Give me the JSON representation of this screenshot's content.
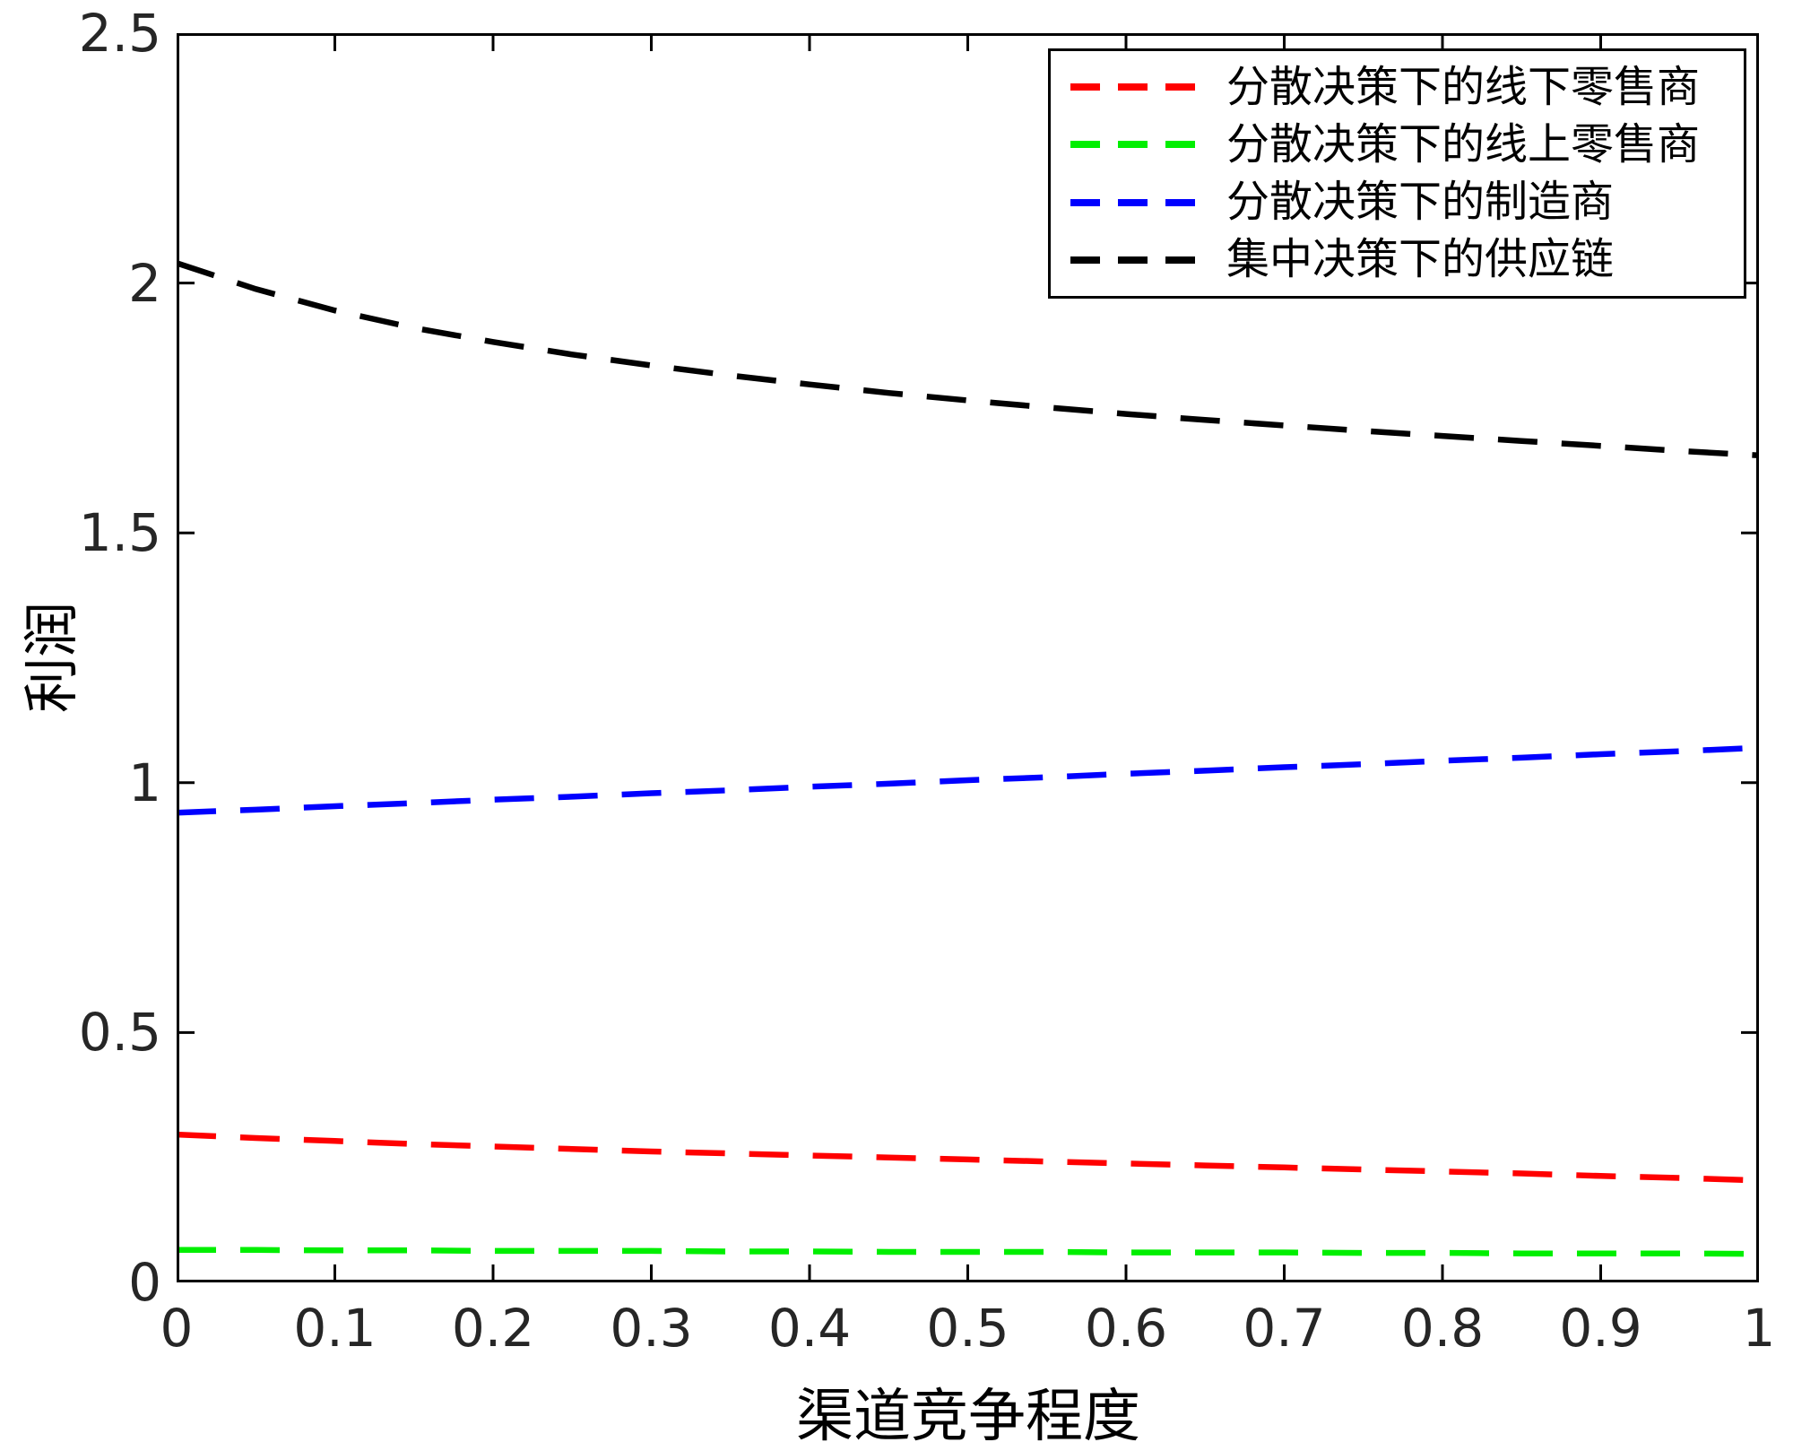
{
  "chart_data": {
    "type": "line",
    "title": "",
    "xlabel": "渠道竞争程度",
    "ylabel": "利润",
    "xlim": [
      0,
      1
    ],
    "ylim": [
      0,
      2.5
    ],
    "xticks": [
      0,
      0.1,
      0.2,
      0.3,
      0.4,
      0.5,
      0.6,
      0.7,
      0.8,
      0.9,
      1
    ],
    "xtick_labels": [
      "0",
      "0.1",
      "0.2",
      "0.3",
      "0.4",
      "0.5",
      "0.6",
      "0.7",
      "0.8",
      "0.9",
      "1"
    ],
    "yticks": [
      0,
      0.5,
      1,
      1.5,
      2,
      2.5
    ],
    "ytick_labels": [
      "0",
      "0.5",
      "1",
      "1.5",
      "2",
      "2.5"
    ],
    "grid": false,
    "legend_position": "top-right",
    "line_style": "dashed",
    "x": [
      0,
      0.05,
      0.1,
      0.15,
      0.2,
      0.25,
      0.3,
      0.35,
      0.4,
      0.45,
      0.5,
      0.55,
      0.6,
      0.65,
      0.7,
      0.75,
      0.8,
      0.85,
      0.9,
      0.95,
      1
    ],
    "series": [
      {
        "name": "分散决策下的线下零售商",
        "color": "#ff0000",
        "values": [
          0.296,
          0.289,
          0.283,
          0.277,
          0.272,
          0.267,
          0.262,
          0.258,
          0.254,
          0.25,
          0.246,
          0.242,
          0.238,
          0.234,
          0.23,
          0.226,
          0.222,
          0.218,
          0.213,
          0.209,
          0.204
        ]
      },
      {
        "name": "分散决策下的线上零售商",
        "color": "#00ef00",
        "values": [
          0.065,
          0.065,
          0.064,
          0.064,
          0.063,
          0.063,
          0.063,
          0.062,
          0.062,
          0.061,
          0.061,
          0.061,
          0.06,
          0.06,
          0.06,
          0.059,
          0.059,
          0.058,
          0.058,
          0.058,
          0.057
        ]
      },
      {
        "name": "分散决策下的制造商",
        "color": "#0000ff",
        "values": [
          0.94,
          0.946,
          0.953,
          0.959,
          0.966,
          0.972,
          0.979,
          0.985,
          0.992,
          0.998,
          1.005,
          1.011,
          1.018,
          1.024,
          1.031,
          1.037,
          1.044,
          1.05,
          1.057,
          1.063,
          1.07
        ]
      },
      {
        "name": "集中决策下的供应链",
        "color": "#000000",
        "values": [
          2.04,
          1.988,
          1.945,
          1.91,
          1.882,
          1.857,
          1.835,
          1.815,
          1.797,
          1.78,
          1.765,
          1.751,
          1.738,
          1.726,
          1.715,
          1.704,
          1.694,
          1.684,
          1.674,
          1.664,
          1.655
        ]
      }
    ]
  }
}
